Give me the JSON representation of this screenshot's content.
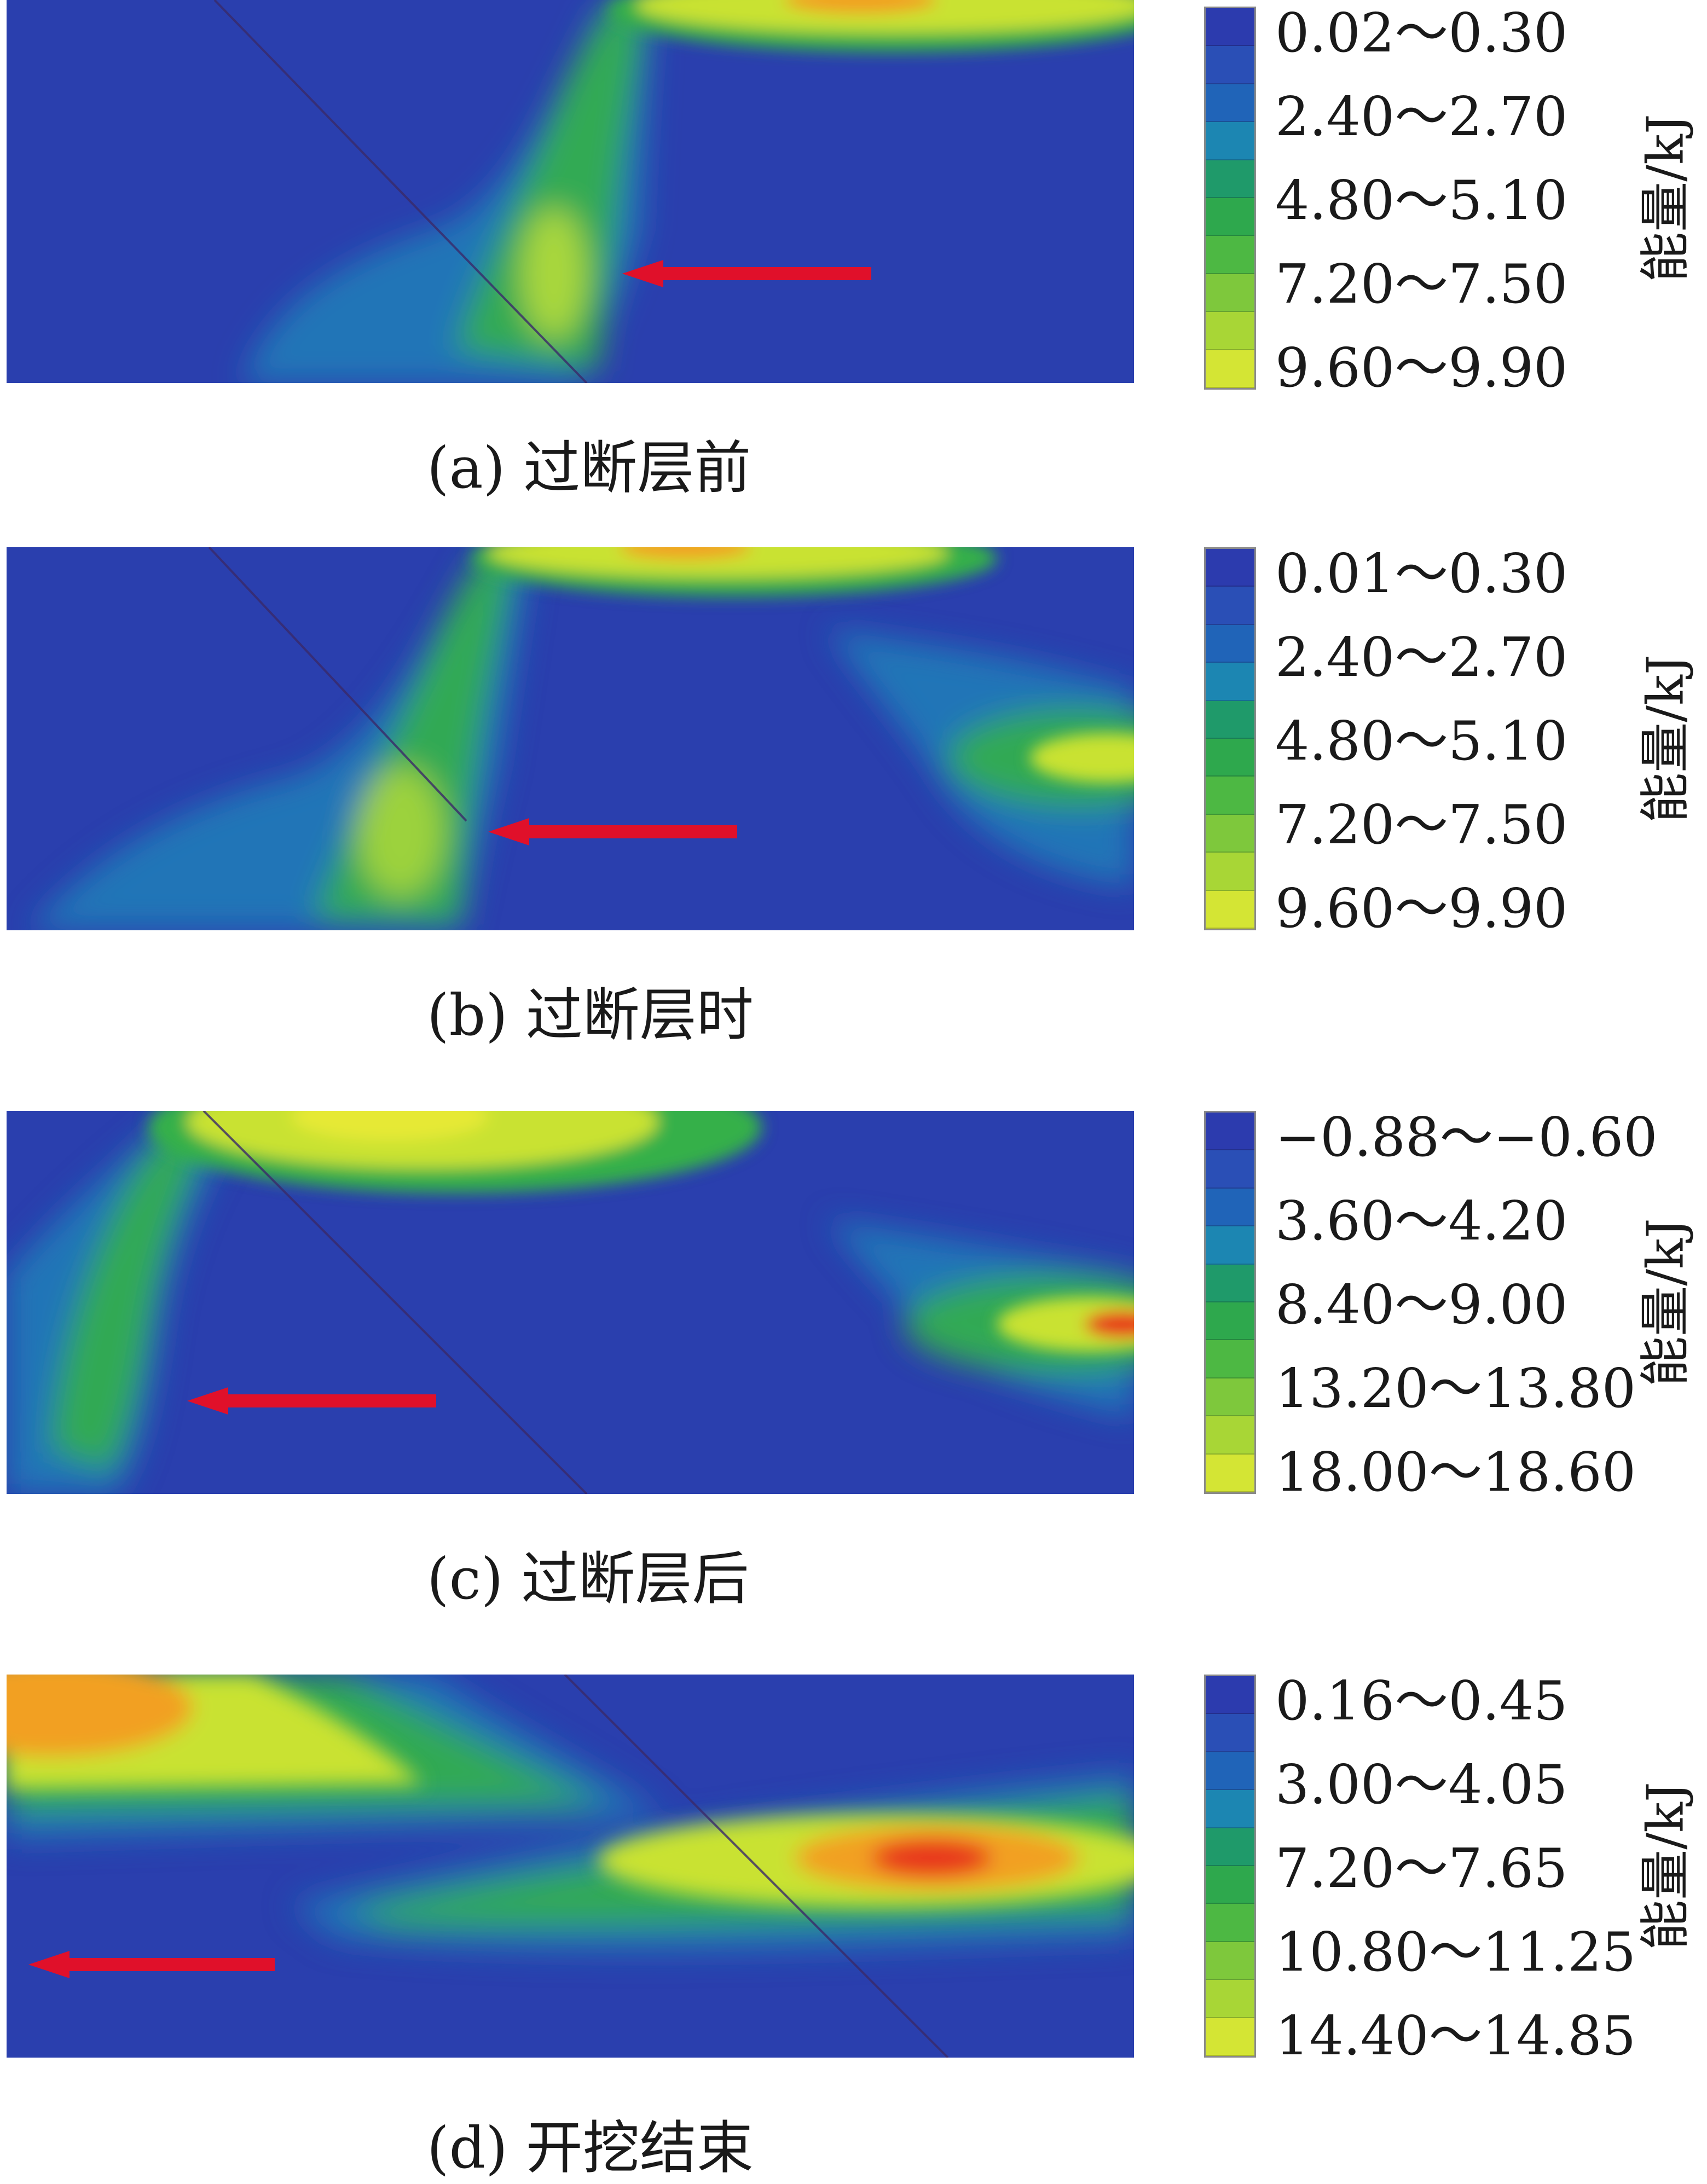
{
  "panels": [
    {
      "caption": "(a) 过断层前",
      "unit": "能量/kJ",
      "legend": [
        "0.02～0.30",
        "2.40～2.70",
        "4.80～5.10",
        "7.20～7.50",
        "9.60～9.90"
      ],
      "colors": {
        "background": "#2a3fae",
        "band_low": "#1d7fb8",
        "band_mid": "#35b04a",
        "band_high": "#c9e233",
        "peak": "#f2a021",
        "arrow": "#e0102a"
      }
    },
    {
      "caption": "(b) 过断层时",
      "unit": "能量/kJ",
      "legend": [
        "0.01～0.30",
        "2.40～2.70",
        "4.80～5.10",
        "7.20～7.50",
        "9.60～9.90"
      ],
      "colors": {
        "background": "#2a3fae",
        "band_low": "#1d7fb8",
        "band_mid": "#35b04a",
        "band_high": "#c9e233",
        "peak": "#f2a021",
        "arrow": "#e0102a"
      }
    },
    {
      "caption": "(c) 过断层后",
      "unit": "能量/kJ",
      "legend": [
        "−0.88～−0.60",
        "3.60～4.20",
        "8.40～9.00",
        "13.20～13.80",
        "18.00～18.60"
      ],
      "colors": {
        "background": "#2a3fae",
        "band_low": "#1d7fb8",
        "band_mid": "#35b04a",
        "band_high": "#c9e233",
        "peak": "#e8361d",
        "arrow": "#e0102a"
      }
    },
    {
      "caption": "(d) 开挖结束",
      "unit": "能量/kJ",
      "legend": [
        "0.16～0.45",
        "3.00～4.05",
        "7.20～7.65",
        "10.80～11.25",
        "14.40～14.85"
      ],
      "colors": {
        "background": "#2a3fae",
        "band_low": "#1d7fb8",
        "band_mid": "#35b04a",
        "band_high": "#c9e233",
        "peak": "#e8361d",
        "arrow": "#e0102a"
      }
    }
  ]
}
